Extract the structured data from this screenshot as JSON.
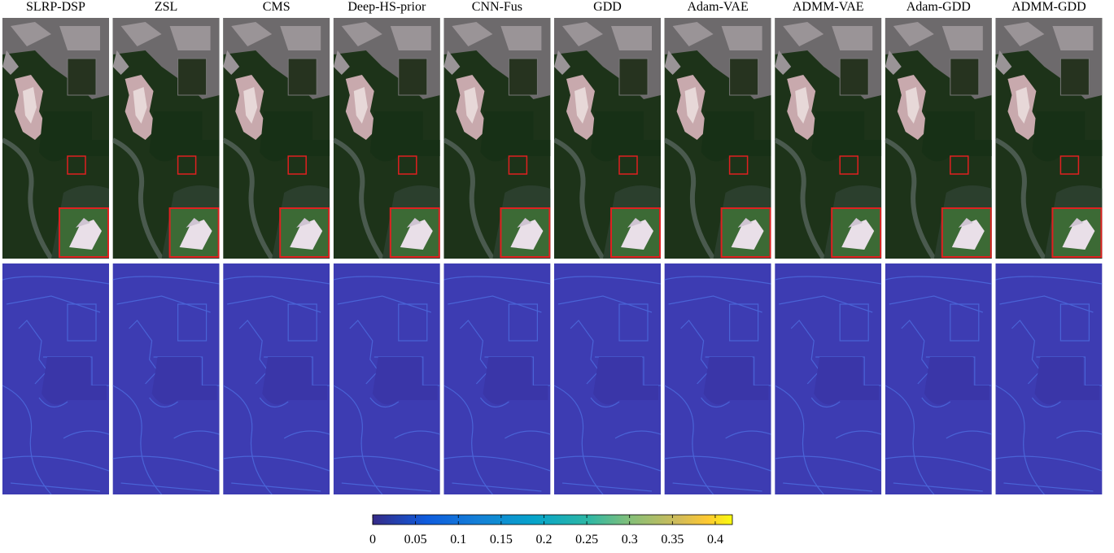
{
  "columns": [
    {
      "title": "SLRP-DSP"
    },
    {
      "title": "ZSL"
    },
    {
      "title": "CMS"
    },
    {
      "title": "Deep-HS-prior"
    },
    {
      "title": "CNN-Fus"
    },
    {
      "title": "GDD"
    },
    {
      "title": "Adam-VAE"
    },
    {
      "title": "ADMM-VAE"
    },
    {
      "title": "Adam-GDD"
    },
    {
      "title": "ADMM-GDD"
    }
  ],
  "colorbar": {
    "lim": [
      0,
      0.42
    ],
    "ticks": [
      0,
      0.05,
      0.1,
      0.15,
      0.2,
      0.25,
      0.3,
      0.35,
      0.4
    ]
  }
}
